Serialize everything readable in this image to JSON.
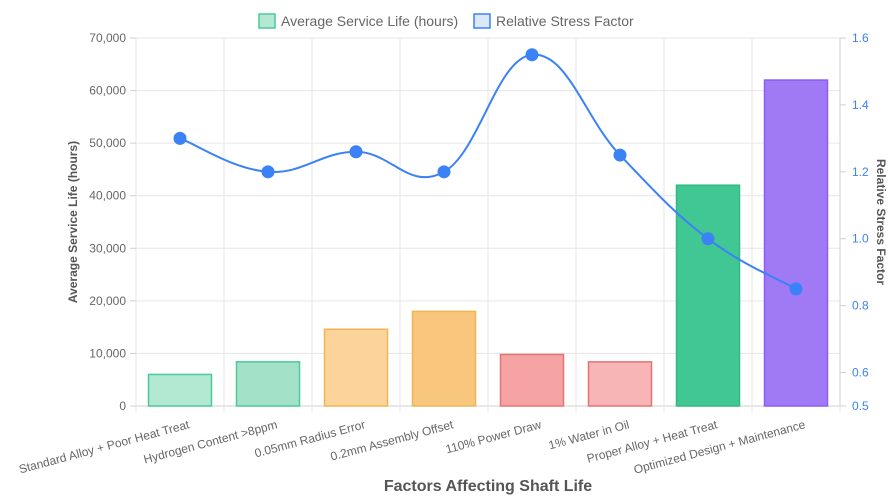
{
  "chart_data": {
    "type": "bar",
    "categories": [
      "Standard Alloy + Poor Heat Treat",
      "Hydrogen Content >8ppm",
      "0.05mm Radius Error",
      "0.2mm Assembly Offset",
      "110% Power Draw",
      "1% Water in Oil",
      "Proper Alloy + Heat Treat",
      "Optimized Design + Maintenance"
    ],
    "series": [
      {
        "name": "Average Service Life (hours)",
        "type": "bar",
        "axis": "left",
        "values": [
          6000,
          8400,
          14600,
          18000,
          9800,
          8400,
          42000,
          62000
        ],
        "fill_colors": [
          "#b3e8d3",
          "#a3e2c8",
          "#fcd49b",
          "#f8c77d",
          "#f5a3a3",
          "#f8b5b5",
          "#40c794",
          "#a07af5"
        ],
        "border_colors": [
          "#4cc99a",
          "#4cc99a",
          "#f0b453",
          "#f0b453",
          "#e57373",
          "#e57373",
          "#34b882",
          "#8b5cf6"
        ]
      },
      {
        "name": "Relative Stress Factor",
        "type": "line",
        "axis": "right",
        "values": [
          1.3,
          1.2,
          1.26,
          1.2,
          1.55,
          1.25,
          1.0,
          0.85
        ],
        "color": "#3b82f6"
      }
    ],
    "xlabel": "Factors Affecting Shaft Life",
    "ylabel": "Average Service Life (hours)",
    "y2label": "Relative Stress Factor",
    "ylim": [
      0,
      70000
    ],
    "y2lim": [
      0.5,
      1.6
    ],
    "yticks": [
      "0",
      "10,000",
      "20,000",
      "30,000",
      "40,000",
      "50,000",
      "60,000",
      "70,000"
    ],
    "y2ticks": [
      "0.5",
      "0.6",
      "0.8",
      "1.0",
      "1.2",
      "1.4",
      "1.6"
    ],
    "y2tick_values": [
      0.5,
      0.6,
      0.8,
      1.0,
      1.2,
      1.4,
      1.6
    ],
    "grid": true,
    "legend_position": "top"
  },
  "legend": {
    "bar_label": "Average Service Life (hours)",
    "line_label": "Relative Stress Factor"
  }
}
